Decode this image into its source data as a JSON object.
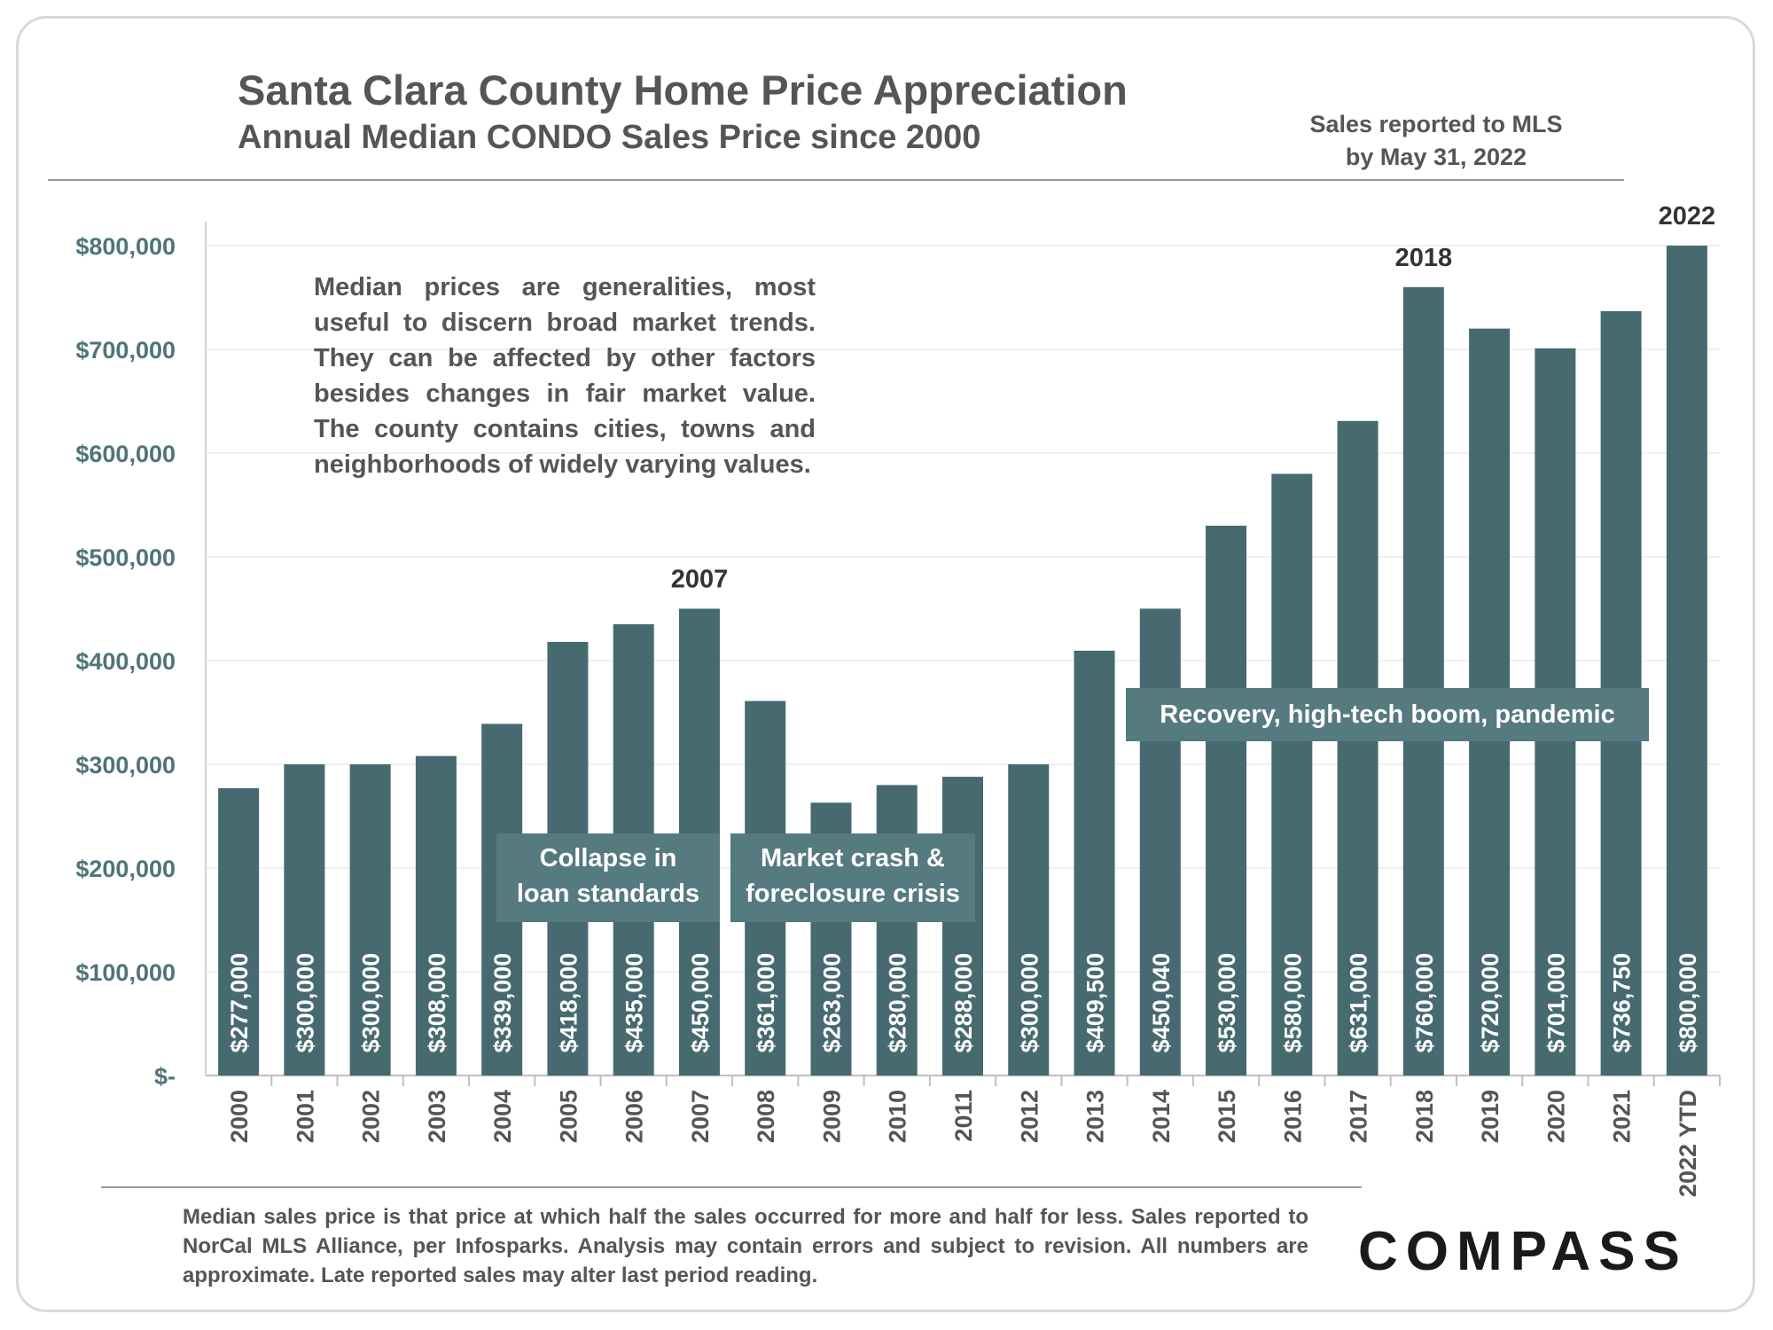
{
  "header": {
    "title": "Santa Clara County Home Price Appreciation",
    "subtitle": "Annual Median CONDO Sales Price since 2000",
    "note_line1": "Sales reported to MLS",
    "note_line2": "by May 31, 2022"
  },
  "description": {
    "lines": [
      "Median prices are generalities, most",
      "useful to discern broad market trends.",
      "They can be affected by other factors",
      "besides changes in fair market value.",
      "The county contains cities, towns and",
      "neighborhoods of widely varying values."
    ]
  },
  "periods": {
    "p1_line1": "Collapse in",
    "p1_line2": "loan standards",
    "p2_line1": "Market crash &",
    "p2_line2": "foreclosure crisis",
    "p3": "Recovery, high-tech boom, pandemic"
  },
  "footnote": {
    "lines": [
      "Median sales price is that price at which half the sales occurred for more and half for less. Sales reported to",
      "NorCal MLS Alliance, per Infosparks. Analysis may contain errors and subject to revision. All numbers are",
      "approximate. Late reported sales may alter last period reading."
    ]
  },
  "logo": {
    "text": "COMPASS"
  },
  "colors": {
    "bar": "#466a70",
    "axis_label": "#4f7479",
    "text": "#555555",
    "period_box": "#557a80"
  },
  "chart_data": {
    "type": "bar",
    "categories": [
      "2000",
      "2001",
      "2002",
      "2003",
      "2004",
      "2005",
      "2006",
      "2007",
      "2008",
      "2009",
      "2010",
      "2011",
      "2012",
      "2013",
      "2014",
      "2015",
      "2016",
      "2017",
      "2018",
      "2019",
      "2020",
      "2021",
      "2022 YTD"
    ],
    "values": [
      277000,
      300000,
      300000,
      308000,
      339000,
      418000,
      435000,
      450000,
      361000,
      263000,
      280000,
      288000,
      300000,
      409500,
      450040,
      530000,
      580000,
      631000,
      760000,
      720000,
      701000,
      736750,
      800000
    ],
    "value_labels": [
      "$277,000",
      "$300,000",
      "$300,000",
      "$308,000",
      "$339,000",
      "$418,000",
      "$435,000",
      "$450,000",
      "$361,000",
      "$263,000",
      "$280,000",
      "$288,000",
      "$300,000",
      "$409,500",
      "$450,040",
      "$530,000",
      "$580,000",
      "$631,000",
      "$760,000",
      "$720,000",
      "$701,000",
      "$736,750",
      "$800,000"
    ],
    "ylim": [
      0,
      800000
    ],
    "yticks": [
      0,
      100000,
      200000,
      300000,
      400000,
      500000,
      600000,
      700000,
      800000
    ],
    "ytick_labels": [
      "$-",
      "$100,000",
      "$200,000",
      "$300,000",
      "$400,000",
      "$500,000",
      "$600,000",
      "$700,000",
      "$800,000"
    ],
    "grid": true,
    "annotations": [
      {
        "category": "2007",
        "text": "2007"
      },
      {
        "category": "2018",
        "text": "2018"
      },
      {
        "category": "2022 YTD",
        "text": "2022"
      }
    ]
  }
}
